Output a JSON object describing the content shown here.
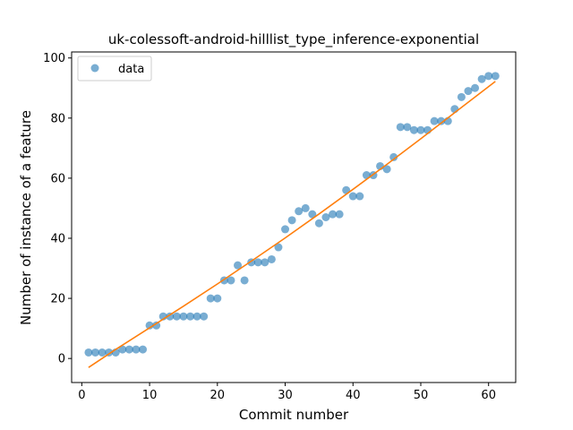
{
  "chart_data": {
    "type": "scatter",
    "title": "uk-colessoft-android-hilllist_type_inference-exponential",
    "xlabel": "Commit number",
    "ylabel": "Number of instance of a feature",
    "xlim": [
      -1.5,
      64
    ],
    "ylim": [
      -8,
      102
    ],
    "xticks": [
      0,
      10,
      20,
      30,
      40,
      50,
      60
    ],
    "yticks": [
      0,
      20,
      40,
      60,
      80,
      100
    ],
    "grid": false,
    "legend_position": "top-left",
    "colors": {
      "points": "#1f77b4",
      "fit": "#ff7f0e"
    },
    "series": [
      {
        "name": "data",
        "kind": "points",
        "x": [
          1,
          2,
          3,
          4,
          5,
          6,
          7,
          8,
          9,
          10,
          11,
          12,
          13,
          14,
          15,
          16,
          17,
          18,
          19,
          20,
          21,
          22,
          23,
          24,
          25,
          26,
          27,
          28,
          29,
          30,
          31,
          32,
          33,
          34,
          35,
          36,
          37,
          38,
          39,
          40,
          41,
          42,
          43,
          44,
          45,
          46,
          47,
          48,
          49,
          50,
          51,
          52,
          53,
          54,
          55,
          56,
          57,
          58,
          59,
          60,
          61
        ],
        "y": [
          2,
          2,
          2,
          2,
          2,
          3,
          3,
          3,
          3,
          11,
          11,
          14,
          14,
          14,
          14,
          14,
          14,
          14,
          20,
          20,
          26,
          26,
          31,
          26,
          32,
          32,
          32,
          33,
          37,
          43,
          46,
          49,
          50,
          48,
          45,
          47,
          48,
          48,
          56,
          54,
          54,
          61,
          61,
          64,
          63,
          67,
          77,
          77,
          76,
          76,
          76,
          79,
          79,
          79,
          83,
          87,
          89,
          90,
          93,
          94,
          94
        ]
      },
      {
        "kind": "fit-line",
        "x": [
          1,
          5,
          10,
          15,
          20,
          25,
          30,
          35,
          40,
          45,
          50,
          55,
          61
        ],
        "y": [
          -3,
          3,
          10.2,
          17.4,
          24.8,
          32.4,
          40.1,
          48.1,
          56.3,
          64.6,
          73.1,
          81.8,
          92.2
        ]
      }
    ]
  }
}
